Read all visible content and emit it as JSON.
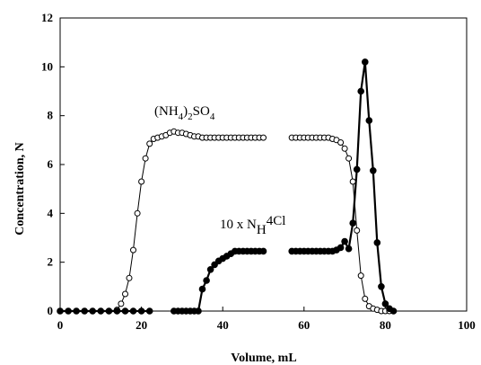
{
  "chart_data": {
    "type": "line",
    "xlabel": "Volume, mL",
    "ylabel": "Concentration, N",
    "xlim": [
      0,
      100
    ],
    "ylim": [
      0,
      12
    ],
    "x_ticks": [
      "0",
      "20",
      "40",
      "60",
      "80",
      "100"
    ],
    "y_ticks": [
      "0",
      "2",
      "4",
      "6",
      "8",
      "10",
      "12"
    ],
    "grid": false,
    "annotations": {
      "sulfate": "(NH4)2SO4",
      "chloride": "10 x NH4Cl"
    },
    "series": [
      {
        "name": "(NH4)2SO4",
        "marker": "open-circle",
        "segments": [
          [
            [
              0,
              0
            ],
            [
              2,
              0
            ],
            [
              4,
              0
            ],
            [
              6,
              0
            ],
            [
              8,
              0
            ],
            [
              10,
              0
            ],
            [
              12,
              0
            ],
            [
              14,
              0.05
            ],
            [
              15,
              0.3
            ],
            [
              16,
              0.7
            ],
            [
              17,
              1.35
            ],
            [
              18,
              2.5
            ],
            [
              19,
              4.0
            ],
            [
              20,
              5.3
            ],
            [
              21,
              6.25
            ],
            [
              22,
              6.85
            ],
            [
              23,
              7.05
            ],
            [
              24,
              7.1
            ],
            [
              25,
              7.15
            ],
            [
              26,
              7.2
            ],
            [
              27,
              7.3
            ],
            [
              28,
              7.35
            ],
            [
              29,
              7.3
            ],
            [
              30,
              7.3
            ],
            [
              31,
              7.25
            ],
            [
              32,
              7.2
            ],
            [
              33,
              7.15
            ],
            [
              34,
              7.15
            ],
            [
              35,
              7.1
            ],
            [
              36,
              7.1
            ],
            [
              37,
              7.1
            ],
            [
              38,
              7.1
            ],
            [
              39,
              7.1
            ],
            [
              40,
              7.1
            ],
            [
              41,
              7.1
            ],
            [
              42,
              7.1
            ],
            [
              43,
              7.1
            ],
            [
              44,
              7.1
            ],
            [
              45,
              7.1
            ],
            [
              46,
              7.1
            ],
            [
              47,
              7.1
            ],
            [
              48,
              7.1
            ],
            [
              49,
              7.1
            ],
            [
              50,
              7.1
            ]
          ],
          [
            [
              57,
              7.1
            ],
            [
              58,
              7.1
            ],
            [
              59,
              7.1
            ],
            [
              60,
              7.1
            ],
            [
              61,
              7.1
            ],
            [
              62,
              7.1
            ],
            [
              63,
              7.1
            ],
            [
              64,
              7.1
            ],
            [
              65,
              7.1
            ],
            [
              66,
              7.1
            ],
            [
              67,
              7.05
            ],
            [
              68,
              7.0
            ],
            [
              69,
              6.9
            ],
            [
              70,
              6.65
            ],
            [
              71,
              6.25
            ],
            [
              72,
              5.3
            ],
            [
              73,
              3.3
            ],
            [
              74,
              1.45
            ],
            [
              75,
              0.5
            ],
            [
              76,
              0.2
            ],
            [
              77,
              0.1
            ],
            [
              78,
              0.05
            ],
            [
              79,
              0
            ],
            [
              80,
              0
            ],
            [
              81,
              0
            ],
            [
              82,
              0
            ]
          ]
        ]
      },
      {
        "name": "10 x NH4Cl",
        "marker": "filled-circle",
        "segments": [
          [
            [
              0,
              0
            ],
            [
              2,
              0
            ],
            [
              4,
              0
            ],
            [
              6,
              0
            ],
            [
              8,
              0
            ],
            [
              10,
              0
            ],
            [
              12,
              0
            ],
            [
              14,
              0
            ],
            [
              16,
              0
            ],
            [
              18,
              0
            ],
            [
              20,
              0
            ],
            [
              22,
              0
            ]
          ],
          [
            [
              28,
              0
            ],
            [
              29,
              0
            ],
            [
              30,
              0
            ],
            [
              31,
              0
            ],
            [
              32,
              0
            ],
            [
              33,
              0
            ],
            [
              34,
              0
            ],
            [
              35,
              0.9
            ],
            [
              36,
              1.25
            ],
            [
              37,
              1.7
            ],
            [
              38,
              1.9
            ],
            [
              39,
              2.05
            ],
            [
              40,
              2.15
            ],
            [
              41,
              2.25
            ],
            [
              42,
              2.35
            ],
            [
              43,
              2.45
            ],
            [
              44,
              2.45
            ],
            [
              45,
              2.45
            ],
            [
              46,
              2.45
            ],
            [
              47,
              2.45
            ],
            [
              48,
              2.45
            ],
            [
              49,
              2.45
            ],
            [
              50,
              2.45
            ]
          ],
          [
            [
              57,
              2.45
            ],
            [
              58,
              2.45
            ],
            [
              59,
              2.45
            ],
            [
              60,
              2.45
            ],
            [
              61,
              2.45
            ],
            [
              62,
              2.45
            ],
            [
              63,
              2.45
            ],
            [
              64,
              2.45
            ],
            [
              65,
              2.45
            ],
            [
              66,
              2.45
            ],
            [
              67,
              2.45
            ],
            [
              68,
              2.5
            ],
            [
              69,
              2.6
            ],
            [
              70,
              2.85
            ],
            [
              71,
              2.55
            ],
            [
              72,
              3.6
            ],
            [
              73,
              5.8
            ],
            [
              74,
              9.0
            ],
            [
              75,
              10.2
            ],
            [
              76,
              7.8
            ],
            [
              77,
              5.75
            ],
            [
              78,
              2.8
            ],
            [
              79,
              1.0
            ],
            [
              80,
              0.3
            ],
            [
              81,
              0.1
            ],
            [
              82,
              0
            ]
          ]
        ]
      }
    ]
  }
}
